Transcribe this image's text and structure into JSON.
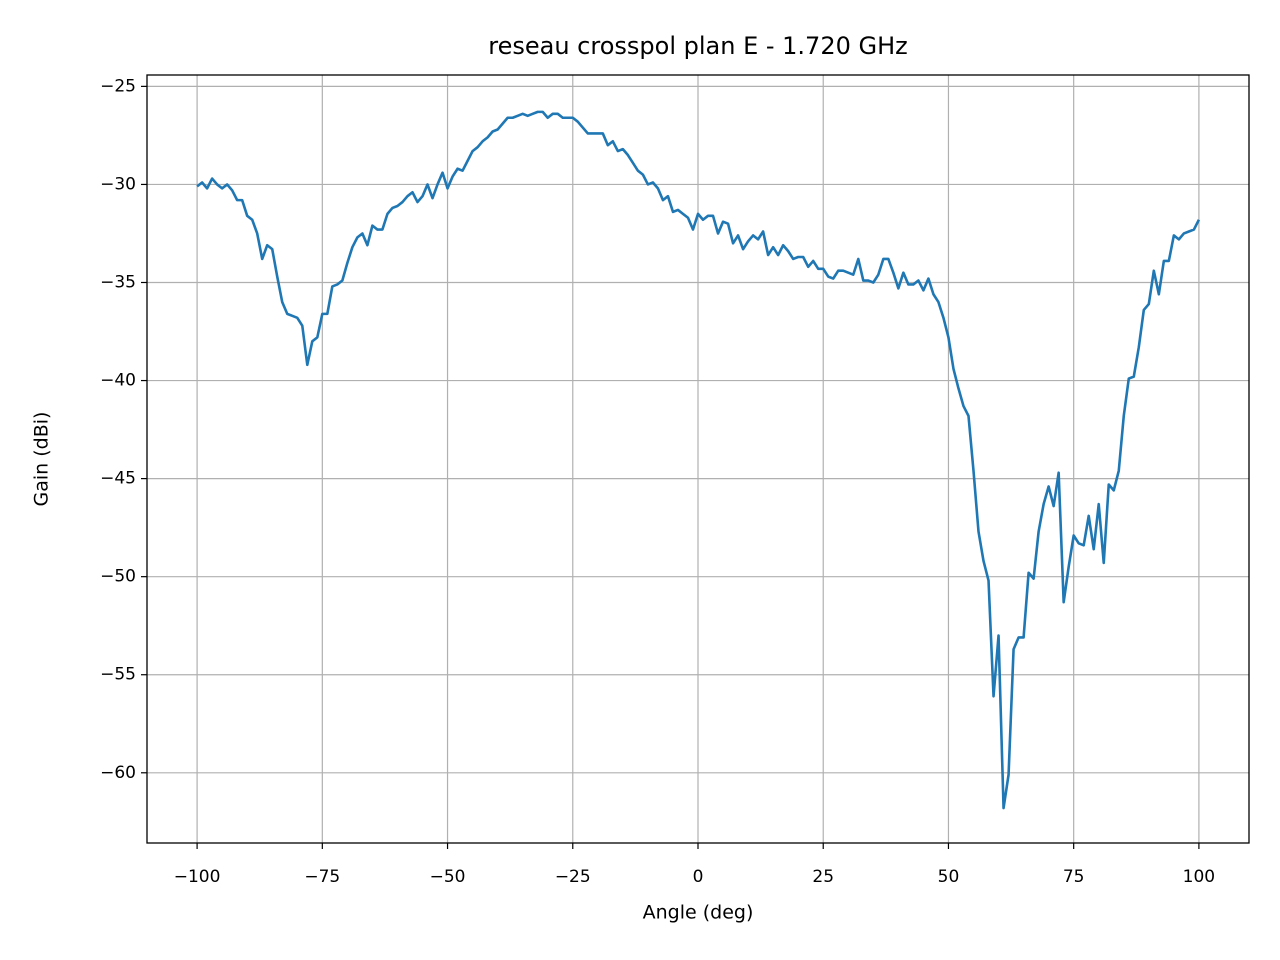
{
  "chart_data": {
    "type": "line",
    "title": "reseau crosspol plan E - 1.720 GHz",
    "x_label": "Angle (deg)",
    "y_label": "Gain (dBi)",
    "color": "#1f77b4",
    "grid": true,
    "xlim": [
      -110,
      110
    ],
    "ylim": [
      -63.58,
      -24.42
    ],
    "xticks": [
      {
        "value": -100,
        "label": "−100"
      },
      {
        "value": -75,
        "label": "−75"
      },
      {
        "value": -50,
        "label": "−50"
      },
      {
        "value": -25,
        "label": "−25"
      },
      0,
      25,
      50,
      75,
      100
    ],
    "yticks": [
      {
        "value": -60,
        "label": "−60"
      },
      {
        "value": -55,
        "label": "−55"
      },
      {
        "value": -50,
        "label": "−50"
      },
      {
        "value": -45,
        "label": "−45"
      },
      {
        "value": -40,
        "label": "−40"
      },
      {
        "value": -35,
        "label": "−35"
      },
      {
        "value": -30,
        "label": "−30"
      },
      {
        "value": -25,
        "label": "−25"
      }
    ],
    "x": [
      -100,
      -99,
      -98,
      -97,
      -96,
      -95,
      -94,
      -93,
      -92,
      -91,
      -90,
      -89,
      -88,
      -87,
      -86,
      -85,
      -84,
      -83,
      -82,
      -81,
      -80,
      -79,
      -78,
      -77,
      -76,
      -75,
      -74,
      -73,
      -72,
      -71,
      -70,
      -69,
      -68,
      -67,
      -66,
      -65,
      -64,
      -63,
      -62,
      -61,
      -60,
      -59,
      -58,
      -57,
      -56,
      -55,
      -54,
      -53,
      -52,
      -51,
      -50,
      -49,
      -48,
      -47,
      -46,
      -45,
      -44,
      -43,
      -42,
      -41,
      -40,
      -39,
      -38,
      -37,
      -36,
      -35,
      -34,
      -33,
      -32,
      -31,
      -30,
      -29,
      -28,
      -27,
      -26,
      -25,
      -24,
      -23,
      -22,
      -21,
      -20,
      -19,
      -18,
      -17,
      -16,
      -15,
      -14,
      -13,
      -12,
      -11,
      -10,
      -9,
      -8,
      -7,
      -6,
      -5,
      -4,
      -3,
      -2,
      -1,
      0,
      1,
      2,
      3,
      4,
      5,
      6,
      7,
      8,
      9,
      10,
      11,
      12,
      13,
      14,
      15,
      16,
      17,
      18,
      19,
      20,
      21,
      22,
      23,
      24,
      25,
      26,
      27,
      28,
      29,
      30,
      31,
      32,
      33,
      34,
      35,
      36,
      37,
      38,
      39,
      40,
      41,
      42,
      43,
      44,
      45,
      46,
      47,
      48,
      49,
      50,
      51,
      52,
      53,
      54,
      55,
      56,
      57,
      58,
      59,
      60,
      61,
      62,
      63,
      64,
      65,
      66,
      67,
      68,
      69,
      70,
      71,
      72,
      73,
      74,
      75,
      76,
      77,
      78,
      79,
      80,
      81,
      82,
      83,
      84,
      85,
      86,
      87,
      88,
      89,
      90,
      91,
      92,
      93,
      94,
      95,
      96,
      97,
      98,
      99,
      100
    ],
    "values": [
      -30.1,
      -29.9,
      -30.2,
      -29.7,
      -30.0,
      -30.2,
      -30.0,
      -30.3,
      -30.8,
      -30.8,
      -31.6,
      -31.8,
      -32.5,
      -33.8,
      -33.1,
      -33.3,
      -34.7,
      -36.0,
      -36.6,
      -36.7,
      -36.8,
      -37.2,
      -39.2,
      -38.0,
      -37.8,
      -36.6,
      -36.6,
      -35.2,
      -35.1,
      -34.9,
      -34.0,
      -33.2,
      -32.7,
      -32.5,
      -33.1,
      -32.1,
      -32.3,
      -32.3,
      -31.5,
      -31.2,
      -31.1,
      -30.9,
      -30.6,
      -30.4,
      -30.9,
      -30.6,
      -30.0,
      -30.7,
      -30.0,
      -29.4,
      -30.2,
      -29.6,
      -29.2,
      -29.3,
      -28.8,
      -28.3,
      -28.1,
      -27.8,
      -27.6,
      -27.3,
      -27.2,
      -26.9,
      -26.6,
      -26.6,
      -26.5,
      -26.4,
      -26.5,
      -26.4,
      -26.3,
      -26.3,
      -26.6,
      -26.4,
      -26.4,
      -26.6,
      -26.6,
      -26.6,
      -26.8,
      -27.1,
      -27.4,
      -27.4,
      -27.4,
      -27.4,
      -28.0,
      -27.8,
      -28.3,
      -28.2,
      -28.5,
      -28.9,
      -29.3,
      -29.5,
      -30.0,
      -29.9,
      -30.2,
      -30.8,
      -30.6,
      -31.4,
      -31.3,
      -31.5,
      -31.7,
      -32.3,
      -31.5,
      -31.8,
      -31.6,
      -31.6,
      -32.5,
      -31.9,
      -32.0,
      -33.0,
      -32.6,
      -33.3,
      -32.9,
      -32.6,
      -32.8,
      -32.4,
      -33.6,
      -33.2,
      -33.6,
      -33.1,
      -33.4,
      -33.8,
      -33.7,
      -33.7,
      -34.2,
      -33.9,
      -34.3,
      -34.3,
      -34.7,
      -34.8,
      -34.4,
      -34.4,
      -34.5,
      -34.6,
      -33.8,
      -34.9,
      -34.9,
      -35.0,
      -34.6,
      -33.8,
      -33.8,
      -34.5,
      -35.3,
      -34.5,
      -35.1,
      -35.1,
      -34.9,
      -35.4,
      -34.8,
      -35.6,
      -36.0,
      -36.8,
      -37.8,
      -39.4,
      -40.4,
      -41.3,
      -41.8,
      -44.6,
      -47.7,
      -49.2,
      -50.2,
      -56.1,
      -53.0,
      -61.8,
      -60.1,
      -53.7,
      -53.1,
      -53.1,
      -49.8,
      -50.1,
      -47.7,
      -46.3,
      -45.4,
      -46.4,
      -44.7,
      -51.3,
      -49.5,
      -47.9,
      -48.3,
      -48.4,
      -46.9,
      -48.6,
      -46.3,
      -49.3,
      -45.3,
      -45.6,
      -44.6,
      -41.8,
      -39.9,
      -39.8,
      -38.3,
      -36.4,
      -36.1,
      -34.4,
      -35.6,
      -33.9,
      -33.9,
      -32.6,
      -32.8,
      -32.5,
      -32.4,
      -32.3,
      -31.8
    ]
  }
}
